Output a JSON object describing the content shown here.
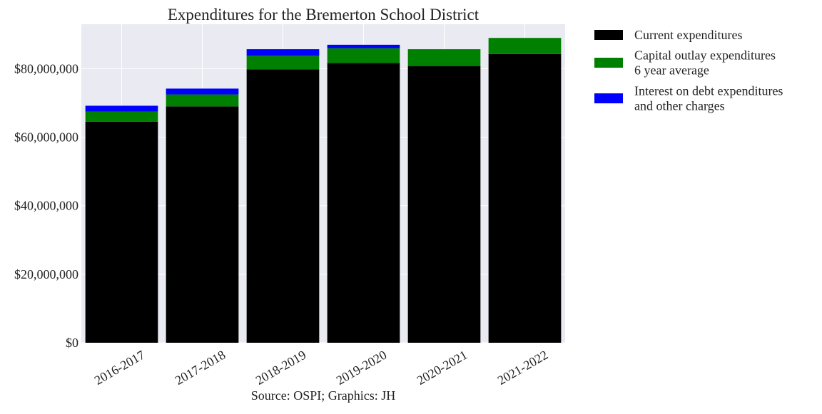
{
  "chart_data": {
    "type": "bar",
    "stacked": true,
    "title": "Expenditures for the Bremerton School District",
    "caption": "Source: OSPI; Graphics: JH",
    "xlabel": "",
    "ylabel": "",
    "categories": [
      "2016-2017",
      "2017-2018",
      "2018-2019",
      "2019-2020",
      "2020-2021",
      "2021-2022"
    ],
    "ylim": [
      0,
      93000000
    ],
    "yticks": [
      0,
      20000000,
      40000000,
      60000000,
      80000000
    ],
    "ytick_labels": [
      "$0",
      "$20,000,000",
      "$40,000,000",
      "$60,000,000",
      "$80,000,000"
    ],
    "grid": true,
    "legend_position": "outside-right",
    "series": [
      {
        "name": "Current expenditures",
        "color": "#000000",
        "values": [
          64500000,
          69000000,
          79800000,
          81700000,
          80800000,
          84300000
        ]
      },
      {
        "name": "Capital outlay expenditures\n6 year average",
        "color": "#008000",
        "values": [
          3000000,
          3500000,
          4000000,
          4300000,
          4900000,
          4700000
        ]
      },
      {
        "name": "Interest on debt expenditures\nand other charges",
        "color": "#0000ff",
        "values": [
          1700000,
          1700000,
          1900000,
          1000000,
          0,
          0
        ]
      }
    ]
  }
}
